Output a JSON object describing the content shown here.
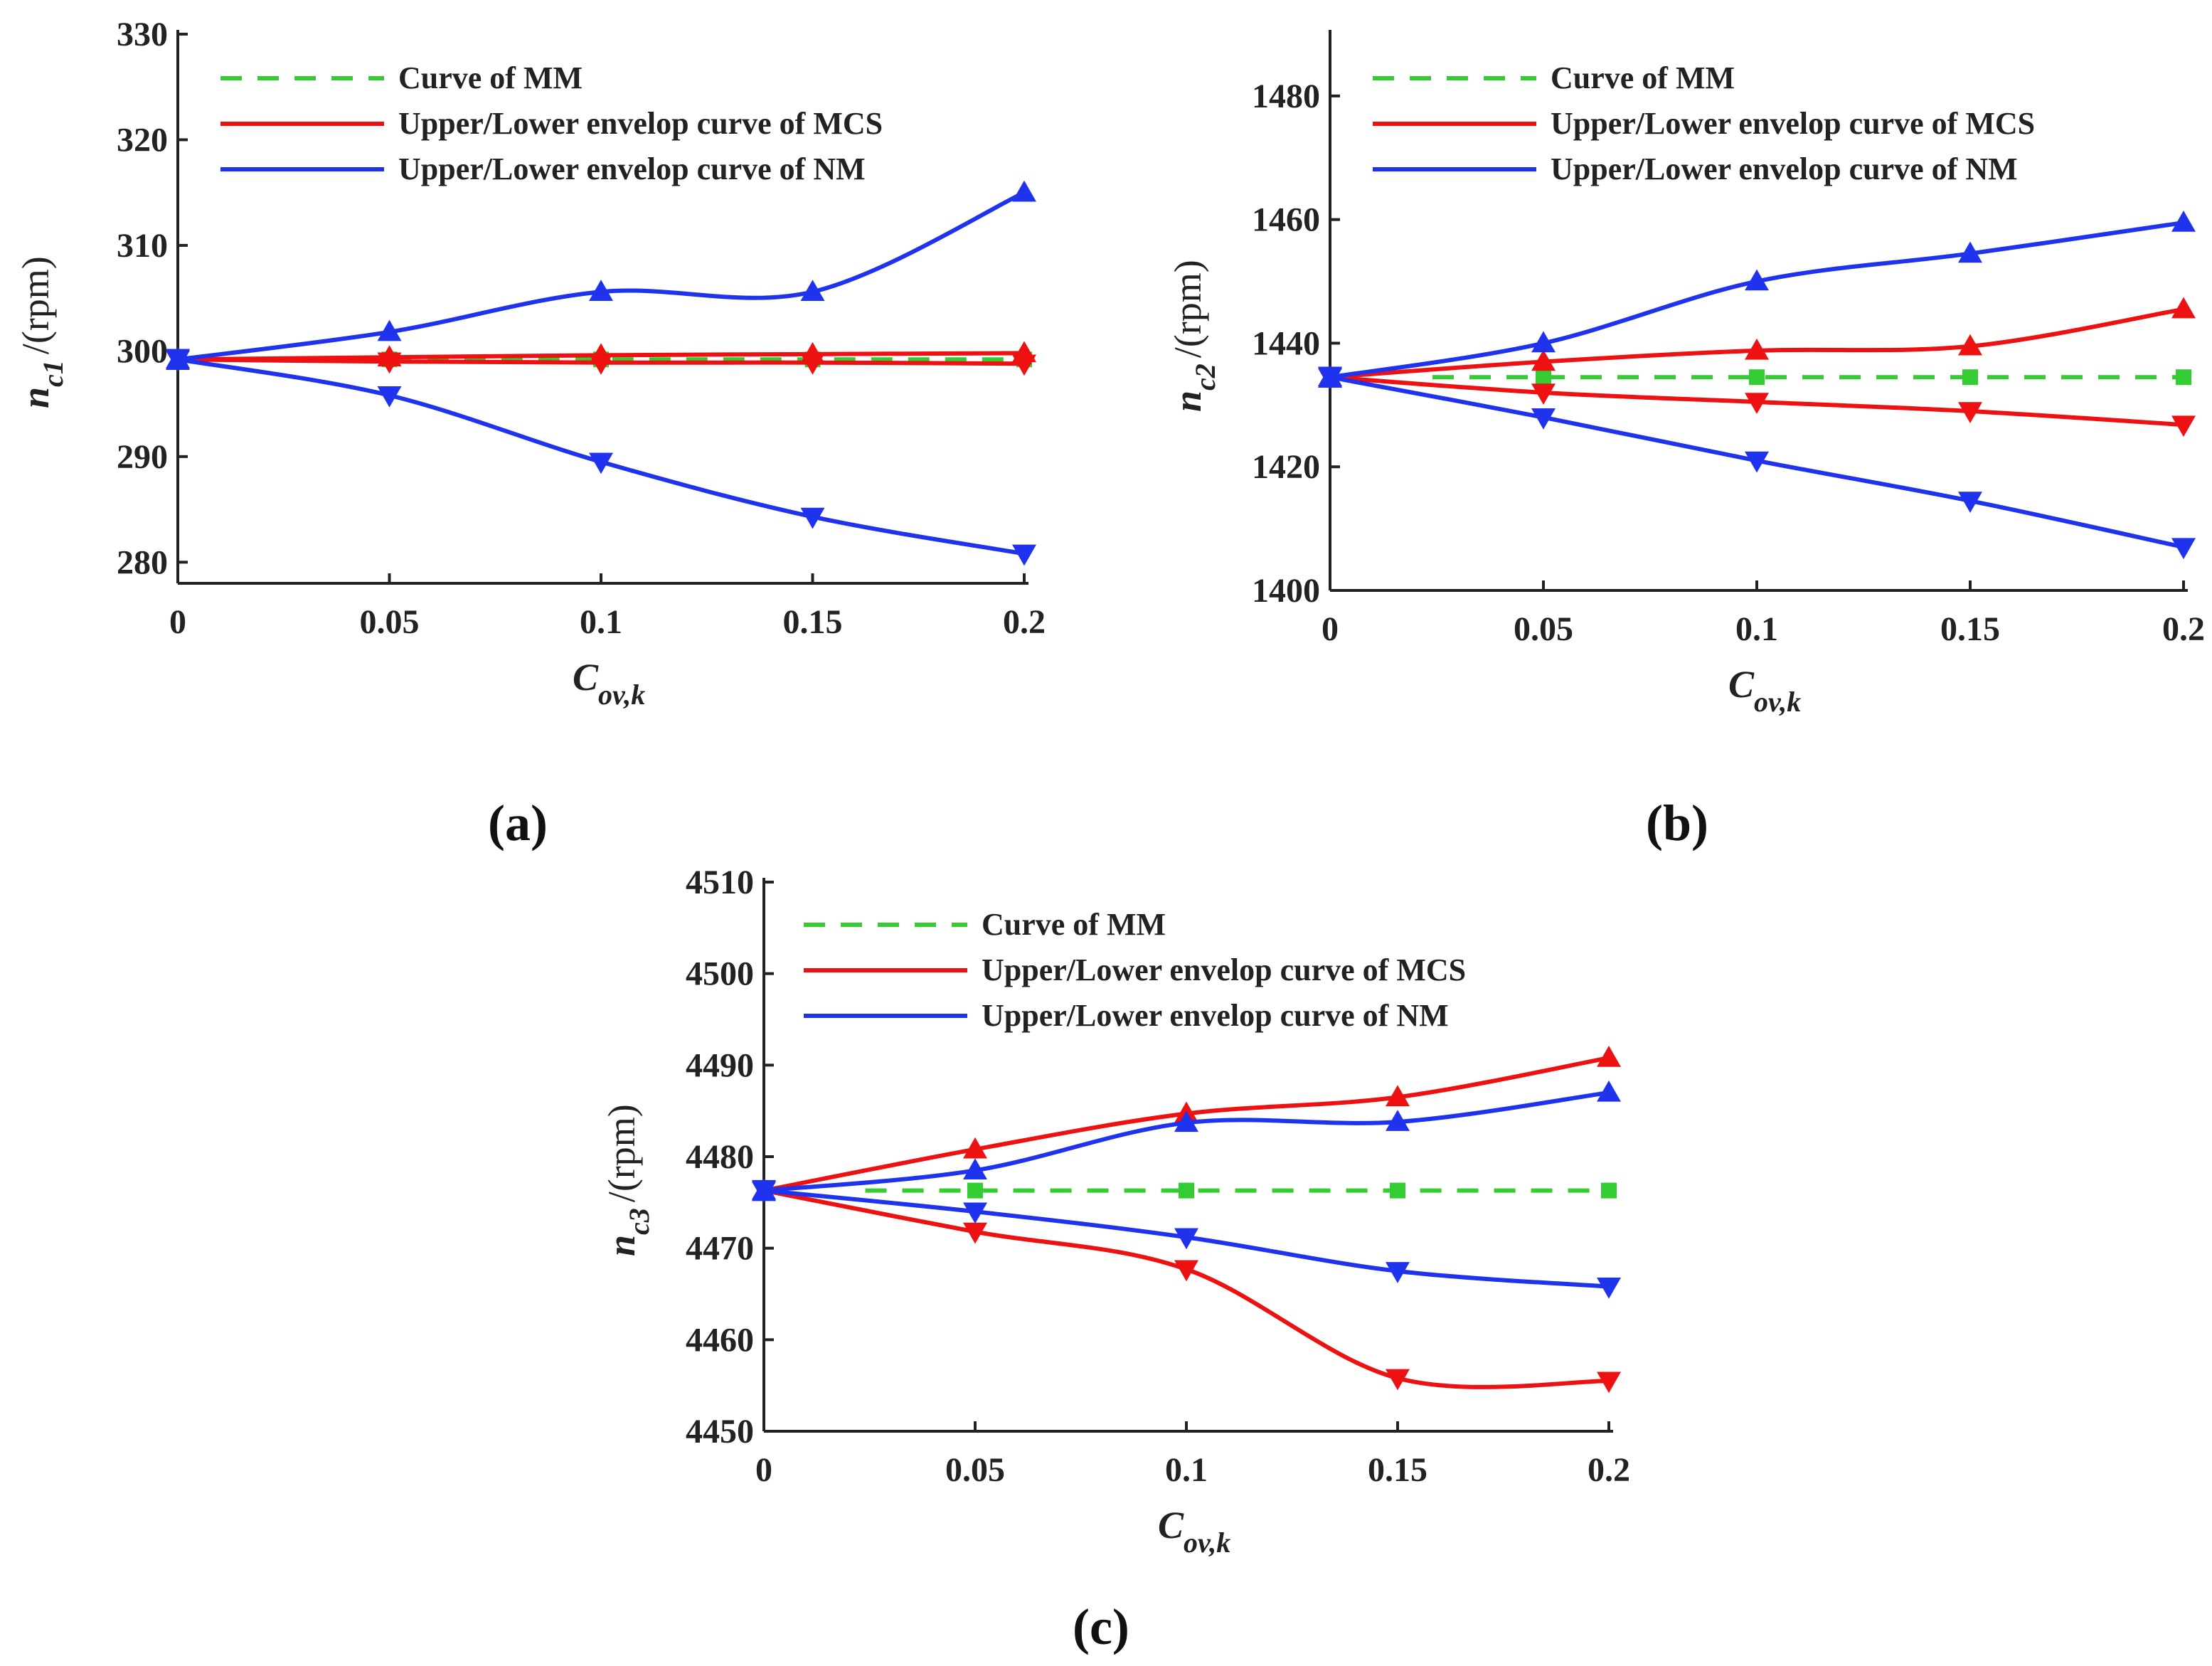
{
  "colors": {
    "mm": "#33cc33",
    "mcs": "#ee1111",
    "nm": "#1f33ee",
    "axis": "#222222"
  },
  "legend": {
    "mm": "Curve of MM",
    "mcs": "Upper/Lower envelop curve of MCS",
    "nm": "Upper/Lower envelop curve of NM"
  },
  "chart_data": [
    {
      "panel": "(a)",
      "type": "line",
      "xlabel_main": "C",
      "xlabel_sub": "ov,k",
      "ylabel_main": "n",
      "ylabel_sub": "c1",
      "ylabel_unit": "/(rpm)",
      "x": [
        0,
        0.05,
        0.1,
        0.15,
        0.2
      ],
      "xticks": [
        "0",
        "0.05",
        "0.1",
        "0.15",
        "0.2"
      ],
      "yticks": [
        "280",
        "290",
        "300",
        "310",
        "320",
        "330"
      ],
      "ylim": [
        278,
        330
      ],
      "series": [
        {
          "name": "Curve of MM",
          "style": "mm",
          "marker": "square",
          "values": [
            299.2,
            299.2,
            299.2,
            299.2,
            299.2
          ]
        },
        {
          "name": "MCS upper",
          "style": "mcs",
          "marker": "tri-up",
          "values": [
            299.2,
            299.4,
            299.6,
            299.7,
            299.8
          ]
        },
        {
          "name": "MCS lower",
          "style": "mcs",
          "marker": "tri-down",
          "values": [
            299.2,
            299.0,
            298.9,
            298.9,
            298.8
          ]
        },
        {
          "name": "NM upper",
          "style": "nm",
          "marker": "tri-up",
          "values": [
            299.2,
            301.8,
            305.6,
            305.6,
            315
          ]
        },
        {
          "name": "NM lower",
          "style": "nm",
          "marker": "tri-down",
          "values": [
            299.2,
            295.8,
            289.5,
            284.3,
            280.8
          ]
        }
      ]
    },
    {
      "panel": "(b)",
      "type": "line",
      "xlabel_main": "C",
      "xlabel_sub": "ov,k",
      "ylabel_main": "n",
      "ylabel_sub": "c2",
      "ylabel_unit": "/(rpm)",
      "x": [
        0,
        0.05,
        0.1,
        0.15,
        0.2
      ],
      "xticks": [
        "0",
        "0.05",
        "0.1",
        "0.15",
        "0.2"
      ],
      "yticks": [
        "1400",
        "1420",
        "1440",
        "1460",
        "1480"
      ],
      "ylim": [
        1400,
        1490
      ],
      "series": [
        {
          "name": "Curve of MM",
          "style": "mm",
          "marker": "square",
          "values": [
            1434.5,
            1434.5,
            1434.5,
            1434.5,
            1434.5
          ]
        },
        {
          "name": "MCS upper",
          "style": "mcs",
          "marker": "tri-up",
          "values": [
            1434.5,
            1437,
            1438.8,
            1439.5,
            1445.5
          ]
        },
        {
          "name": "MCS lower",
          "style": "mcs",
          "marker": "tri-down",
          "values": [
            1434.5,
            1432,
            1430.5,
            1429,
            1426.8
          ]
        },
        {
          "name": "NM upper",
          "style": "nm",
          "marker": "tri-up",
          "values": [
            1434.5,
            1440,
            1450,
            1454.5,
            1459.5
          ]
        },
        {
          "name": "NM lower",
          "style": "nm",
          "marker": "tri-down",
          "values": [
            1434.5,
            1428,
            1421,
            1414.5,
            1407
          ]
        }
      ]
    },
    {
      "panel": "(c)",
      "type": "line",
      "xlabel_main": "C",
      "xlabel_sub": "ov,k",
      "ylabel_main": "n",
      "ylabel_sub": "c3",
      "ylabel_unit": "/(rpm)",
      "x": [
        0,
        0.05,
        0.1,
        0.15,
        0.2
      ],
      "xticks": [
        "0",
        "0.05",
        "0.1",
        "0.15",
        "0.2"
      ],
      "yticks": [
        "4450",
        "4460",
        "4470",
        "4480",
        "4490",
        "4500",
        "4510"
      ],
      "ylim": [
        4450,
        4510
      ],
      "series": [
        {
          "name": "Curve of MM",
          "style": "mm",
          "marker": "square",
          "values": [
            4476.3,
            4476.3,
            4476.3,
            4476.3,
            4476.3
          ]
        },
        {
          "name": "MCS upper",
          "style": "mcs",
          "marker": "tri-up",
          "values": [
            4476.3,
            4480.8,
            4484.7,
            4486.5,
            4490.8
          ]
        },
        {
          "name": "MCS lower",
          "style": "mcs",
          "marker": "tri-down",
          "values": [
            4476.3,
            4471.8,
            4467.7,
            4455.8,
            4455.5
          ]
        },
        {
          "name": "NM upper",
          "style": "nm",
          "marker": "tri-up",
          "values": [
            4476.3,
            4478.5,
            4483.7,
            4483.8,
            4487
          ]
        },
        {
          "name": "NM lower",
          "style": "nm",
          "marker": "tri-down",
          "values": [
            4476.3,
            4474,
            4471.2,
            4467.5,
            4465.8
          ]
        }
      ]
    }
  ]
}
